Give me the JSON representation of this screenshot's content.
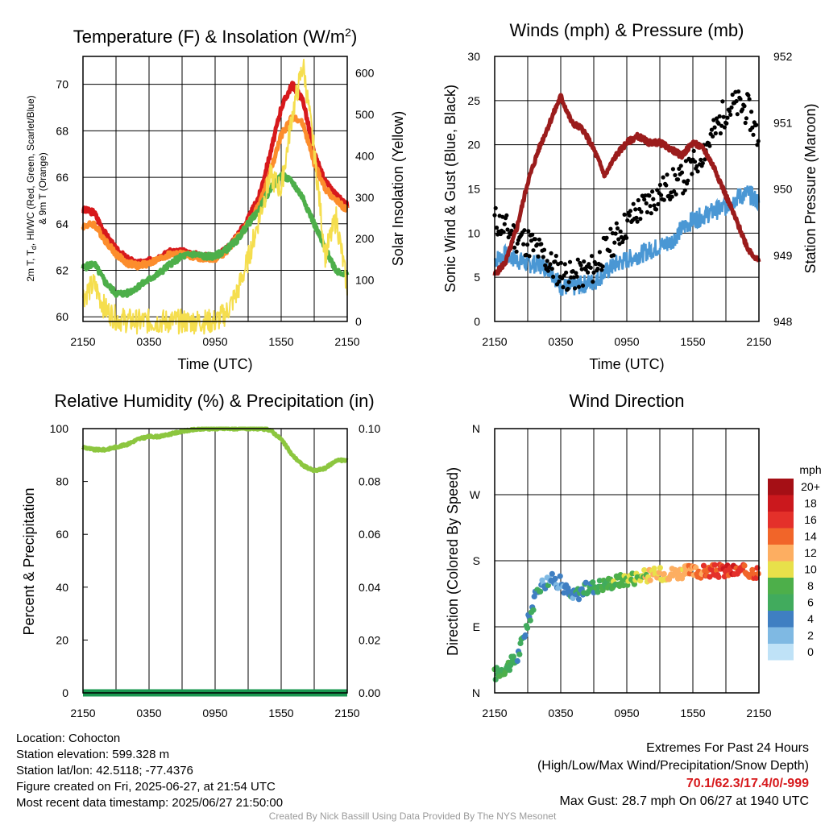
{
  "chart_data": [
    {
      "type": "line",
      "title": "Temperature (F) & Insolation (W/m²)",
      "xlabel": "Time (UTC)",
      "ylabel": "2m T, T_d, HI/WC (Red, Green, Scarlet/Blue) & 9m T (Orange)",
      "y2label": "Solar Insolation (Yellow)",
      "x_ticks": [
        "2150",
        "0350",
        "0950",
        "1550",
        "2150"
      ],
      "ylim": [
        59.8,
        71.2
      ],
      "y_ticks": [
        60,
        62,
        64,
        66,
        68,
        70
      ],
      "y2lim": [
        0,
        640
      ],
      "y2_ticks": [
        0,
        100,
        200,
        300,
        400,
        500,
        600
      ],
      "x_hours": [
        0,
        1,
        2,
        3,
        4,
        5,
        6,
        7,
        8,
        9,
        10,
        11,
        12,
        13,
        14,
        15,
        16,
        17,
        18,
        19,
        20,
        21,
        22,
        23,
        24
      ],
      "series": [
        {
          "color": "#d7191c",
          "values": [
            64.6,
            64.5,
            63.6,
            62.9,
            62.5,
            62.3,
            62.4,
            62.6,
            62.8,
            62.8,
            62.7,
            62.6,
            62.6,
            62.9,
            63.5,
            64.2,
            65.2,
            67.0,
            69.0,
            70.0,
            69.3,
            67.0,
            65.8,
            65.2,
            64.8
          ]
        },
        {
          "color": "#fc8d2c",
          "values": [
            63.9,
            64.0,
            63.3,
            62.7,
            62.3,
            62.2,
            62.3,
            62.5,
            62.7,
            62.7,
            62.6,
            62.5,
            62.5,
            62.8,
            63.4,
            64.0,
            64.8,
            66.2,
            67.8,
            68.6,
            68.3,
            66.6,
            65.5,
            65.0,
            64.6
          ]
        },
        {
          "color": "#4daf4a",
          "values": [
            62.1,
            62.3,
            61.5,
            61.0,
            61.0,
            61.3,
            61.6,
            61.9,
            62.3,
            62.6,
            62.7,
            62.6,
            62.6,
            62.9,
            63.3,
            64.0,
            64.6,
            65.5,
            66.1,
            65.8,
            65.1,
            64.0,
            62.9,
            62.0,
            61.8
          ]
        },
        {
          "color": "#f5de4e",
          "axis": "y2",
          "values": [
            60,
            90,
            30,
            8,
            2,
            0,
            0,
            0,
            0,
            0,
            0,
            0,
            0,
            20,
            70,
            150,
            250,
            350,
            320,
            500,
            620,
            410,
            160,
            250,
            80
          ]
        }
      ]
    },
    {
      "type": "line",
      "title": "Winds (mph) & Pressure (mb)",
      "xlabel": "Time (UTC)",
      "ylabel": "Sonic Wind & Gust (Blue, Black)",
      "y2label": "Station Pressure (Maroon)",
      "x_ticks": [
        "2150",
        "0350",
        "0950",
        "1550",
        "2150"
      ],
      "ylim": [
        0,
        30
      ],
      "y_ticks": [
        0,
        5,
        10,
        15,
        20,
        25,
        30
      ],
      "y2lim": [
        948,
        952
      ],
      "y2_ticks": [
        948,
        949,
        950,
        951,
        952
      ],
      "x_hours": [
        0,
        1,
        2,
        3,
        4,
        5,
        6,
        7,
        8,
        9,
        10,
        11,
        12,
        13,
        14,
        15,
        16,
        17,
        18,
        19,
        20,
        21,
        22,
        23,
        24
      ],
      "series": [
        {
          "color": "#4a97d4",
          "values": [
            7.0,
            7.5,
            7.0,
            6.5,
            6.5,
            6.0,
            4.0,
            3.8,
            4.2,
            4.5,
            5.5,
            6.5,
            7.0,
            7.5,
            8.0,
            8.5,
            9.0,
            10.5,
            11.5,
            12.0,
            12.5,
            13.0,
            14.0,
            14.5,
            13.5
          ]
        },
        {
          "color": "#000000",
          "scatter": true,
          "values": [
            11.5,
            10.5,
            9.5,
            9.0,
            8.0,
            6.5,
            5.5,
            5.0,
            5.5,
            6.0,
            8.0,
            9.5,
            11.0,
            12.5,
            13.5,
            14.5,
            15.5,
            16.0,
            17.5,
            19.5,
            21.5,
            24.0,
            24.5,
            24.0,
            20.5
          ]
        },
        {
          "color": "#9b1c1c",
          "axis": "y2",
          "values": [
            948.7,
            948.9,
            949.4,
            950.1,
            950.6,
            951.0,
            951.4,
            951.0,
            950.9,
            950.6,
            950.2,
            950.5,
            950.7,
            950.8,
            950.7,
            950.7,
            950.6,
            950.5,
            950.7,
            950.6,
            950.3,
            949.9,
            949.5,
            949.1,
            948.9
          ]
        }
      ]
    },
    {
      "type": "line",
      "title": "Relative Humidity (%) & Precipitation (in)",
      "ylabel": "Percent & Precipitation",
      "x_ticks": [
        "2150",
        "0350",
        "0950",
        "1550",
        "2150"
      ],
      "ylim": [
        0,
        100
      ],
      "y_ticks": [
        0,
        20,
        40,
        60,
        80,
        100
      ],
      "y2lim": [
        0,
        0.1
      ],
      "y2_ticks": [
        "0.00",
        "0.02",
        "0.04",
        "0.06",
        "0.08",
        "0.10"
      ],
      "x_hours": [
        0,
        1,
        2,
        3,
        4,
        5,
        6,
        7,
        8,
        9,
        10,
        11,
        12,
        13,
        14,
        15,
        16,
        17,
        18,
        19,
        20,
        21,
        22,
        23,
        24
      ],
      "series": [
        {
          "color": "#8cc63f",
          "values": [
            93,
            92,
            92,
            93,
            94,
            96,
            97,
            97,
            98,
            99,
            99.5,
            100,
            100,
            100,
            100,
            100,
            100,
            99.5,
            96,
            90,
            86,
            84,
            85,
            88,
            88
          ]
        },
        {
          "color": "#1a9850",
          "axis": "y2",
          "values": [
            0,
            0,
            0,
            0,
            0,
            0,
            0,
            0,
            0,
            0,
            0,
            0,
            0,
            0,
            0,
            0,
            0,
            0,
            0,
            0,
            0,
            0,
            0,
            0,
            0
          ]
        }
      ]
    },
    {
      "type": "scatter",
      "title": "Wind Direction",
      "ylabel": "Direction (Colored By Speed)",
      "x_ticks": [
        "2150",
        "0350",
        "0950",
        "1550",
        "2150"
      ],
      "y_ticks": [
        "N",
        "E",
        "S",
        "W",
        "N"
      ],
      "ylim": [
        0,
        360
      ],
      "legend_title": "mph",
      "legend_labels": [
        "20+",
        "18",
        "16",
        "14",
        "12",
        "10",
        "8",
        "6",
        "4",
        "2",
        "0"
      ],
      "legend_colors": [
        "#a50f15",
        "#cb181d",
        "#e4302a",
        "#f16529",
        "#fdae61",
        "#e8e04a",
        "#4daf4a",
        "#41ab5d",
        "#3f7fc2",
        "#7fb9e3",
        "#bfe2f7"
      ],
      "x_hours": [
        0,
        1,
        2,
        3,
        4,
        5,
        6,
        7,
        8,
        9,
        10,
        11,
        12,
        13,
        14,
        15,
        16,
        17,
        18,
        19,
        20,
        21,
        22,
        23,
        24
      ],
      "direction_deg": [
        25,
        35,
        45,
        95,
        145,
        155,
        150,
        130,
        140,
        145,
        148,
        152,
        155,
        158,
        160,
        162,
        163,
        164,
        165,
        165,
        166,
        166,
        166,
        165,
        165
      ],
      "speed_mph": [
        6,
        7,
        6,
        5,
        4,
        4,
        3,
        4,
        5,
        6,
        7,
        8,
        9,
        9,
        10,
        11,
        12,
        12,
        13,
        14,
        15,
        16,
        16,
        15,
        15
      ]
    }
  ],
  "info": {
    "location": "Location: Cohocton",
    "elevation": "Station elevation: 599.328 m",
    "latlon": "Station lat/lon: 42.5118; -77.4376",
    "created": "Figure created on Fri, 2025-06-27, at 21:54 UTC",
    "recent": "Most recent data timestamp: 2025/06/27 21:50:00"
  },
  "extremes": {
    "line1": "Extremes For Past 24 Hours",
    "line2": "(High/Low/Max Wind/Precipitation/Snow Depth)",
    "values": "70.1/62.3/17.4/0/-999",
    "gust": "Max Gust: 28.7 mph On 06/27 at 1940 UTC"
  },
  "credit": "Created By Nick Bassill Using Data Provided By The NYS Mesonet"
}
